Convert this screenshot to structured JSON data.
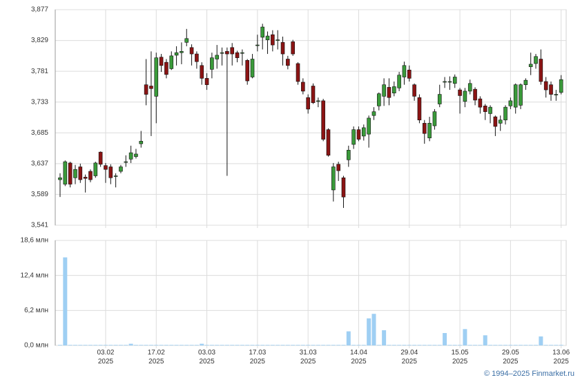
{
  "chart_data": [
    {
      "type": "candlestick",
      "categories": [
        null,
        null,
        null,
        null,
        null,
        null,
        null,
        null,
        null,
        "03.02 2025",
        null,
        null,
        null,
        null,
        null,
        null,
        null,
        null,
        null,
        "17.02 2025",
        null,
        null,
        null,
        null,
        null,
        null,
        null,
        null,
        null,
        "03.03 2025",
        null,
        null,
        null,
        null,
        null,
        null,
        null,
        null,
        null,
        "17.03 2025",
        null,
        null,
        null,
        null,
        null,
        null,
        null,
        null,
        null,
        "31.03 2025",
        null,
        null,
        null,
        null,
        null,
        null,
        null,
        null,
        null,
        "14.04 2025",
        null,
        null,
        null,
        null,
        null,
        null,
        null,
        null,
        null,
        "29.04 2025",
        null,
        null,
        null,
        null,
        null,
        null,
        null,
        null,
        null,
        "15.05 2025",
        null,
        null,
        null,
        null,
        null,
        null,
        null,
        null,
        null,
        "29.05 2025",
        null,
        null,
        null,
        null,
        null,
        null,
        null,
        null,
        null,
        "13.06 2025"
      ],
      "open": [
        3612,
        3605,
        3638,
        3615,
        3632,
        3616,
        3625,
        3618,
        3655,
        3634,
        3632,
        3618,
        3625,
        3640,
        3644,
        3648,
        3668,
        3760,
        3758,
        3742,
        3803,
        3795,
        3785,
        3806,
        3810,
        3826,
        3818,
        3808,
        3790,
        3770,
        3784,
        3800,
        3810,
        3812,
        3818,
        3810,
        3810,
        3798,
        3772,
        3822,
        3834,
        3830,
        3838,
        3830,
        3826,
        3800,
        3827,
        3793,
        3764,
        3740,
        3758,
        3735,
        3735,
        3690,
        3596,
        3636,
        3615,
        3643,
        3667,
        3690,
        3680,
        3683,
        3712,
        3727,
        3742,
        3756,
        3747,
        3755,
        3772,
        3783,
        3760,
        3740,
        3700,
        3677,
        3696,
        3730,
        3765,
        3765,
        3762,
        3752,
        3734,
        3750,
        3753,
        3738,
        3727,
        3715,
        3710,
        3700,
        3705,
        3727,
        3725,
        3728,
        3760,
        3788,
        3793,
        3800,
        3765,
        3760,
        3745,
        3748
      ],
      "high": [
        3622,
        3642,
        3640,
        3635,
        3637,
        3620,
        3628,
        3640,
        3656,
        3638,
        3636,
        3622,
        3635,
        3650,
        3665,
        3660,
        3688,
        3800,
        3812,
        3810,
        3808,
        3800,
        3812,
        3820,
        3826,
        3847,
        3823,
        3812,
        3795,
        3778,
        3810,
        3822,
        3818,
        3818,
        3825,
        3813,
        3815,
        3800,
        3808,
        3838,
        3855,
        3843,
        3845,
        3845,
        3835,
        3805,
        3830,
        3795,
        3770,
        3745,
        3762,
        3740,
        3738,
        3692,
        3638,
        3640,
        3618,
        3665,
        3695,
        3695,
        3698,
        3712,
        3725,
        3748,
        3770,
        3770,
        3765,
        3780,
        3796,
        3790,
        3762,
        3745,
        3705,
        3710,
        3722,
        3760,
        3772,
        3773,
        3776,
        3755,
        3755,
        3768,
        3756,
        3742,
        3730,
        3728,
        3712,
        3712,
        3728,
        3740,
        3762,
        3762,
        3770,
        3810,
        3808,
        3815,
        3772,
        3765,
        3752,
        3775
      ],
      "low": [
        3585,
        3602,
        3600,
        3605,
        3607,
        3592,
        3608,
        3615,
        3632,
        3607,
        3605,
        3600,
        3622,
        3632,
        3638,
        3645,
        3662,
        3728,
        3680,
        3700,
        3780,
        3770,
        3783,
        3790,
        3792,
        3820,
        3790,
        3785,
        3760,
        3752,
        3770,
        3785,
        3790,
        3618,
        3790,
        3795,
        3790,
        3760,
        3770,
        3812,
        3815,
        3808,
        3812,
        3815,
        3790,
        3784,
        3805,
        3760,
        3745,
        3715,
        3730,
        3725,
        3672,
        3648,
        3578,
        3610,
        3568,
        3632,
        3660,
        3672,
        3673,
        3662,
        3705,
        3720,
        3727,
        3728,
        3742,
        3750,
        3760,
        3765,
        3735,
        3700,
        3668,
        3672,
        3690,
        3725,
        3755,
        3752,
        3755,
        3715,
        3725,
        3745,
        3728,
        3715,
        3705,
        3700,
        3680,
        3688,
        3698,
        3722,
        3715,
        3722,
        3752,
        3775,
        3785,
        3760,
        3740,
        3735,
        3735,
        3745
      ],
      "close": [
        3615,
        3640,
        3605,
        3628,
        3612,
        3614,
        3612,
        3638,
        3636,
        3628,
        3615,
        3618,
        3632,
        3640,
        3654,
        3652,
        3672,
        3745,
        3754,
        3802,
        3790,
        3776,
        3805,
        3810,
        3812,
        3832,
        3808,
        3796,
        3770,
        3760,
        3802,
        3806,
        3810,
        3808,
        3808,
        3802,
        3810,
        3766,
        3800,
        3822,
        3850,
        3836,
        3822,
        3830,
        3808,
        3790,
        3808,
        3765,
        3750,
        3722,
        3732,
        3735,
        3675,
        3650,
        3632,
        3626,
        3585,
        3658,
        3690,
        3675,
        3693,
        3708,
        3718,
        3746,
        3760,
        3740,
        3757,
        3775,
        3790,
        3770,
        3742,
        3705,
        3684,
        3700,
        3718,
        3745,
        3765,
        3765,
        3772,
        3743,
        3750,
        3762,
        3736,
        3725,
        3718,
        3725,
        3695,
        3705,
        3725,
        3735,
        3760,
        3760,
        3767,
        3792,
        3804,
        3765,
        3752,
        3745,
        3745,
        3768
      ],
      "up_color": "#3a9a3a",
      "down_color": "#8b1414",
      "ylim": [
        3541,
        3877
      ],
      "yticks": [
        {
          "value": 3541,
          "label": "3,541"
        },
        {
          "value": 3589,
          "label": "3,589"
        },
        {
          "value": 3637,
          "label": "3,637"
        },
        {
          "value": 3685,
          "label": "3,685"
        },
        {
          "value": 3733,
          "label": "3,733"
        },
        {
          "value": 3781,
          "label": "3,781"
        },
        {
          "value": 3829,
          "label": "3,829"
        },
        {
          "value": 3877,
          "label": "3,877"
        }
      ],
      "grid": true
    },
    {
      "type": "bar",
      "values": [
        0.1,
        15.6,
        0.1,
        0.1,
        0.1,
        0.1,
        0.1,
        0.1,
        0.1,
        0.1,
        0.1,
        0.1,
        0.1,
        0.1,
        0.3,
        0.1,
        0.1,
        0.1,
        0.1,
        0.1,
        0.1,
        0.1,
        0.1,
        0.1,
        0.1,
        0.1,
        0.1,
        0.1,
        0.3,
        0.1,
        0.1,
        0.1,
        0.1,
        0.1,
        0.1,
        0.1,
        0.1,
        0.1,
        0.1,
        0.1,
        0.1,
        0.1,
        0.1,
        0.1,
        0.1,
        0.1,
        0.1,
        0.1,
        0.1,
        0.1,
        0.1,
        0.1,
        0.1,
        0.1,
        0.1,
        0.1,
        0.1,
        2.5,
        0.1,
        0.1,
        0.1,
        4.8,
        5.6,
        0.1,
        2.7,
        0.1,
        0.1,
        0.1,
        0.1,
        0.1,
        0.1,
        0.1,
        0.1,
        0.1,
        0.1,
        0.1,
        2.2,
        0.1,
        0.1,
        0.1,
        2.9,
        0.1,
        0.1,
        0.1,
        1.8,
        0.1,
        0.1,
        0.1,
        0.1,
        0.1,
        0.1,
        0.1,
        0.1,
        0.1,
        0.1,
        1.6,
        0.1,
        0.1,
        0.1,
        0.1
      ],
      "color": "#9fcff3",
      "ylim": [
        0,
        18.6
      ],
      "yticks": [
        {
          "value": 0,
          "label": "0,0 млн"
        },
        {
          "value": 6.2,
          "label": "6,2 млн"
        },
        {
          "value": 12.4,
          "label": "12,4 млн"
        },
        {
          "value": 18.6,
          "label": "18,6 млн"
        }
      ],
      "grid": true
    }
  ],
  "footer": "© 1994–2025 Finmarket.ru"
}
